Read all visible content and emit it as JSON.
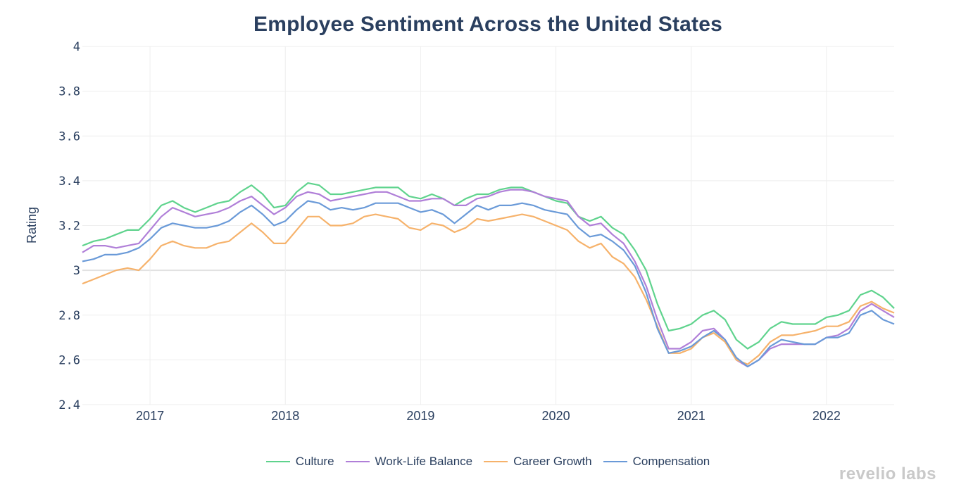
{
  "chart_data": {
    "type": "line",
    "title": "Employee Sentiment Across the United States",
    "ylabel": "Rating",
    "xlabel": "",
    "ylim": [
      2.4,
      4.0
    ],
    "xlim": [
      2016.5,
      2022.5
    ],
    "yticks": [
      "4",
      "3.8",
      "3.6",
      "3.4",
      "3.2",
      "3",
      "2.8",
      "2.6",
      "2.4"
    ],
    "ytick_values": [
      4.0,
      3.8,
      3.6,
      3.4,
      3.2,
      3.0,
      2.8,
      2.6,
      2.4
    ],
    "xticks": [
      "2017",
      "2018",
      "2019",
      "2020",
      "2021",
      "2022"
    ],
    "xtick_values": [
      2017,
      2018,
      2019,
      2020,
      2021,
      2022
    ],
    "grid": true,
    "legend_position": "bottom-center",
    "x_start": 2016.5,
    "x_step_months": 1,
    "series": [
      {
        "name": "Culture",
        "color": "#5fd38d",
        "values": [
          3.11,
          3.13,
          3.14,
          3.16,
          3.18,
          3.18,
          3.23,
          3.29,
          3.31,
          3.28,
          3.26,
          3.28,
          3.3,
          3.31,
          3.35,
          3.38,
          3.34,
          3.28,
          3.29,
          3.35,
          3.39,
          3.38,
          3.34,
          3.34,
          3.35,
          3.36,
          3.37,
          3.37,
          3.37,
          3.33,
          3.32,
          3.34,
          3.32,
          3.29,
          3.32,
          3.34,
          3.34,
          3.36,
          3.37,
          3.37,
          3.35,
          3.33,
          3.31,
          3.3,
          3.24,
          3.22,
          3.24,
          3.19,
          3.16,
          3.09,
          3.0,
          2.85,
          2.73,
          2.74,
          2.76,
          2.8,
          2.82,
          2.78,
          2.69,
          2.65,
          2.68,
          2.74,
          2.77,
          2.76,
          2.76,
          2.76,
          2.79,
          2.8,
          2.82,
          2.89,
          2.91,
          2.88,
          2.83
        ]
      },
      {
        "name": "Work-Life Balance",
        "color": "#b07fd8",
        "values": [
          3.08,
          3.11,
          3.11,
          3.1,
          3.11,
          3.12,
          3.18,
          3.24,
          3.28,
          3.26,
          3.24,
          3.25,
          3.26,
          3.28,
          3.31,
          3.33,
          3.29,
          3.25,
          3.28,
          3.33,
          3.35,
          3.34,
          3.31,
          3.32,
          3.33,
          3.34,
          3.35,
          3.35,
          3.33,
          3.31,
          3.31,
          3.32,
          3.32,
          3.29,
          3.29,
          3.32,
          3.33,
          3.35,
          3.36,
          3.36,
          3.35,
          3.33,
          3.32,
          3.31,
          3.24,
          3.2,
          3.21,
          3.16,
          3.12,
          3.04,
          2.93,
          2.78,
          2.65,
          2.65,
          2.68,
          2.73,
          2.74,
          2.69,
          2.6,
          2.57,
          2.6,
          2.65,
          2.67,
          2.67,
          2.67,
          2.67,
          2.7,
          2.71,
          2.74,
          2.82,
          2.85,
          2.82,
          2.79
        ]
      },
      {
        "name": "Career Growth",
        "color": "#f6b26b",
        "values": [
          2.94,
          2.96,
          2.98,
          3.0,
          3.01,
          3.0,
          3.05,
          3.11,
          3.13,
          3.11,
          3.1,
          3.1,
          3.12,
          3.13,
          3.17,
          3.21,
          3.17,
          3.12,
          3.12,
          3.18,
          3.24,
          3.24,
          3.2,
          3.2,
          3.21,
          3.24,
          3.25,
          3.24,
          3.23,
          3.19,
          3.18,
          3.21,
          3.2,
          3.17,
          3.19,
          3.23,
          3.22,
          3.23,
          3.24,
          3.25,
          3.24,
          3.22,
          3.2,
          3.18,
          3.13,
          3.1,
          3.12,
          3.06,
          3.03,
          2.97,
          2.87,
          2.75,
          2.63,
          2.63,
          2.65,
          2.7,
          2.72,
          2.68,
          2.6,
          2.58,
          2.62,
          2.68,
          2.71,
          2.71,
          2.72,
          2.73,
          2.75,
          2.75,
          2.77,
          2.84,
          2.86,
          2.83,
          2.81
        ]
      },
      {
        "name": "Compensation",
        "color": "#6a9ad8",
        "values": [
          3.04,
          3.05,
          3.07,
          3.07,
          3.08,
          3.1,
          3.14,
          3.19,
          3.21,
          3.2,
          3.19,
          3.19,
          3.2,
          3.22,
          3.26,
          3.29,
          3.25,
          3.2,
          3.22,
          3.27,
          3.31,
          3.3,
          3.27,
          3.28,
          3.27,
          3.28,
          3.3,
          3.3,
          3.3,
          3.28,
          3.26,
          3.27,
          3.25,
          3.21,
          3.25,
          3.29,
          3.27,
          3.29,
          3.29,
          3.3,
          3.29,
          3.27,
          3.26,
          3.25,
          3.19,
          3.15,
          3.16,
          3.13,
          3.09,
          3.02,
          2.9,
          2.74,
          2.63,
          2.64,
          2.66,
          2.7,
          2.73,
          2.69,
          2.61,
          2.57,
          2.6,
          2.66,
          2.69,
          2.68,
          2.67,
          2.67,
          2.7,
          2.7,
          2.72,
          2.8,
          2.82,
          2.78,
          2.76
        ]
      }
    ]
  },
  "brand": {
    "text": "revelio labs"
  }
}
